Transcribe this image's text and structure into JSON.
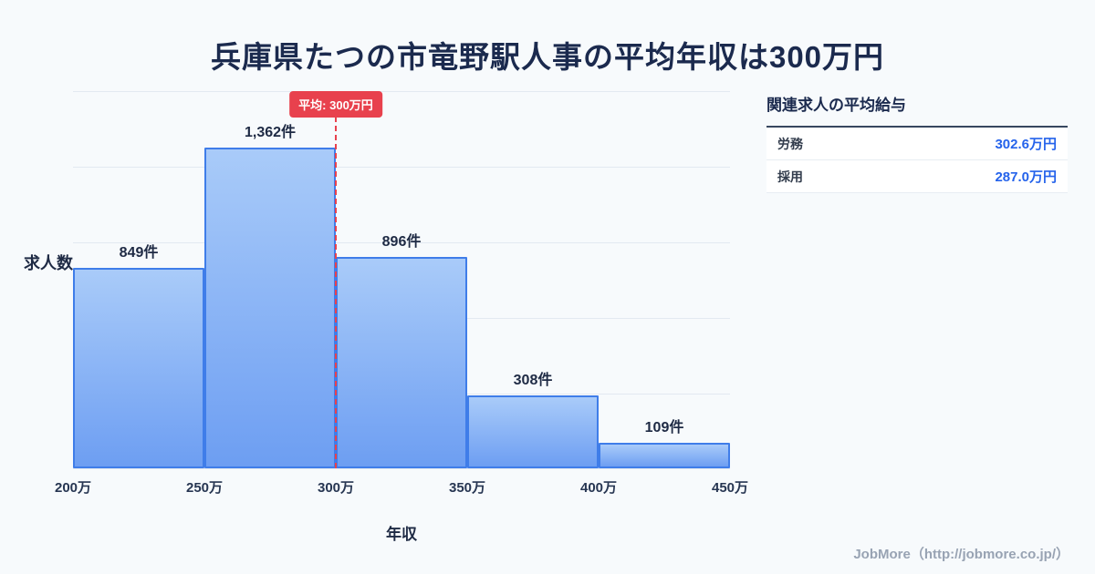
{
  "page": {
    "title": "兵庫県たつの市竜野駅人事の平均年収は300万円",
    "footer": "JobMore（http://jobmore.co.jp/）"
  },
  "chart_data": {
    "type": "bar",
    "title": "兵庫県たつの市竜野駅人事の平均年収は300万円",
    "categories": [
      "200万-250万",
      "250万-300万",
      "300万-350万",
      "350万-400万",
      "400万-450万"
    ],
    "values": [
      849,
      1362,
      896,
      308,
      109
    ],
    "bar_labels": [
      "849件",
      "1,362件",
      "896件",
      "308件",
      "109件"
    ],
    "x_ticks": [
      "200万",
      "250万",
      "300万",
      "350万",
      "400万",
      "450万"
    ],
    "xlabel": "年収",
    "ylabel": "求人数",
    "ylim": [
      0,
      1600
    ],
    "grid": "horizontal",
    "legend": "none",
    "average_line": {
      "label": "平均: 300万円",
      "x": "300万",
      "color": "#e8414d"
    },
    "colors": {
      "bar_fill_top": "#a9cbf9",
      "bar_fill_bottom": "#6d9ef2",
      "bar_border": "#3f7de9"
    }
  },
  "side_panel": {
    "heading": "関連求人の平均給与",
    "rows": [
      {
        "label": "労務",
        "value": "302.6万円"
      },
      {
        "label": "採用",
        "value": "287.0万円"
      }
    ],
    "value_color": "#2563eb"
  }
}
